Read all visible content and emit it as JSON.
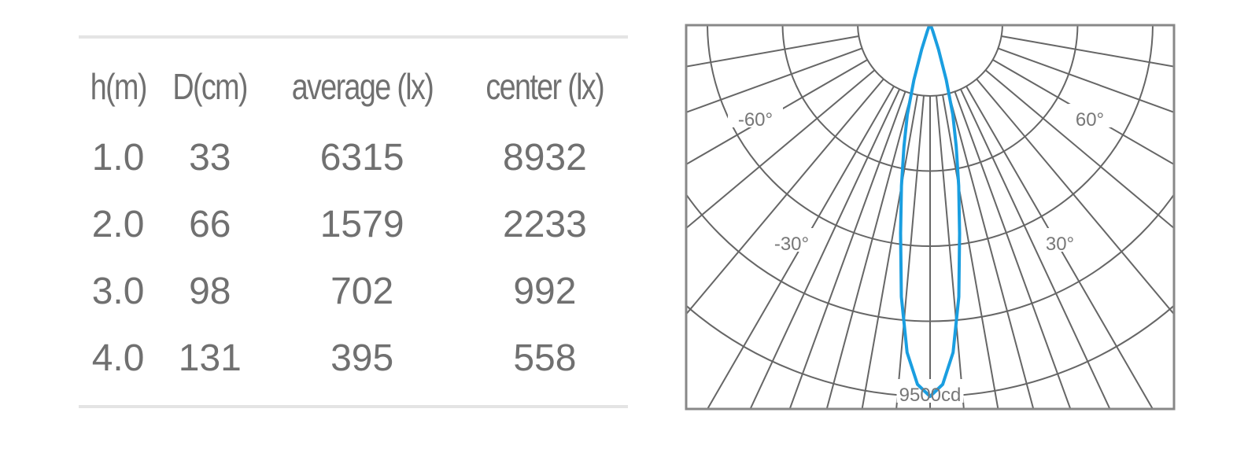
{
  "table": {
    "headers": [
      "h(m)",
      "D(cm)",
      "average (lx)",
      "center (lx)"
    ],
    "rows": [
      [
        "1.0",
        "33",
        "6315",
        "8932"
      ],
      [
        "2.0",
        "66",
        "1579",
        "2233"
      ],
      [
        "3.0",
        "98",
        "702",
        "992"
      ],
      [
        "4.0",
        "131",
        "395",
        "558"
      ]
    ]
  },
  "chart_data": {
    "type": "polar",
    "angle_labels": [
      "-60°",
      "60°",
      "-30°",
      "30°"
    ],
    "radial_max_label": "9500cd",
    "radial_max": 9500,
    "series_color": "#1a9ee0",
    "grid_color": "#666666",
    "intensity_curve": {
      "angle_deg": [
        0,
        2,
        4,
        6,
        8,
        10,
        12,
        14,
        16,
        18,
        20,
        22
      ],
      "candela": [
        9500,
        9200,
        8400,
        7000,
        5400,
        4200,
        3200,
        2400,
        1500,
        700,
        200,
        0
      ],
      "symmetric": true
    }
  }
}
